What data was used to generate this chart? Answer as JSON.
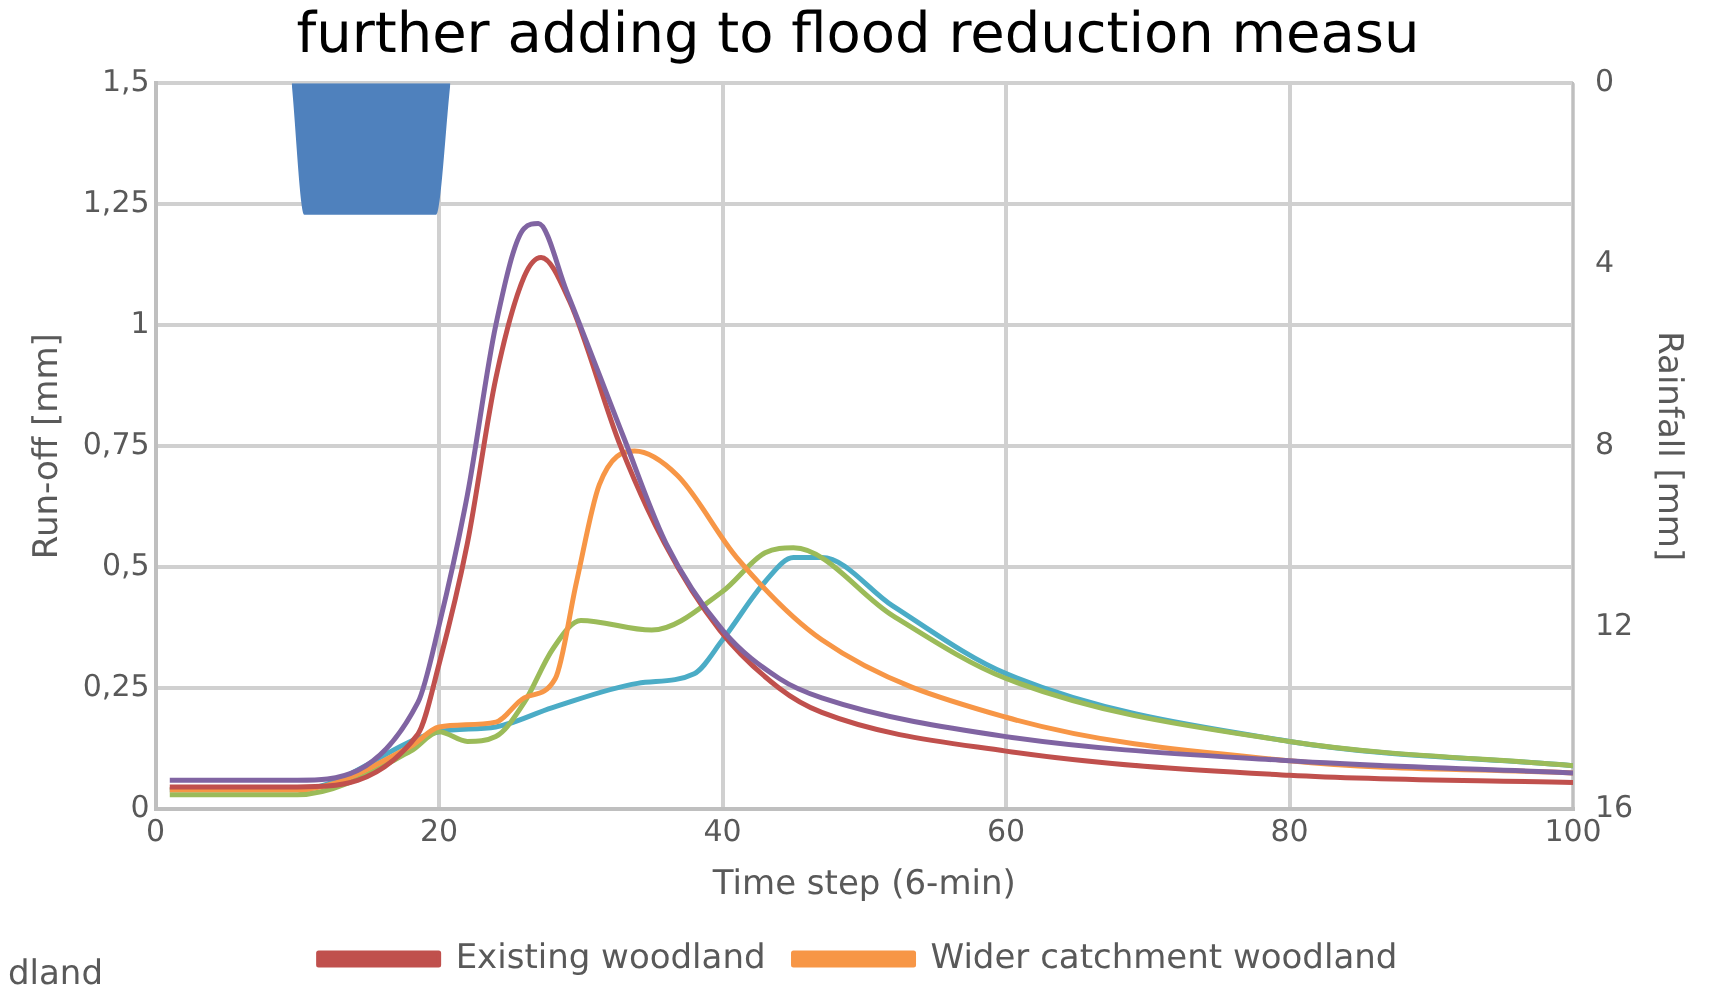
{
  "chart_data": {
    "type": "line",
    "title": "further adding to flood reduction measu",
    "xlabel": "Time step (6-min)",
    "ylabel": "Run-off [mm]",
    "y2label": "Rainfall [mm]",
    "xlim": [
      0,
      100
    ],
    "xticks": [
      0,
      20,
      40,
      60,
      80,
      100
    ],
    "ylim": [
      0,
      1.5
    ],
    "yticks": [
      0,
      {
        "value": 0.25,
        "label": "0,25"
      },
      {
        "value": 0.5,
        "label": "0,5"
      },
      {
        "value": 0.75,
        "label": "0,75"
      },
      1,
      {
        "value": 1.25,
        "label": "1,25"
      },
      {
        "value": 1.5,
        "label": "1,5"
      }
    ],
    "y2lim": [
      16,
      0
    ],
    "y2ticks": [
      0,
      4,
      8,
      12,
      16
    ],
    "grid": true,
    "legend": "bottom",
    "marker": "none",
    "line_style": "solid",
    "annotations": [
      "dland"
    ],
    "series": [
      {
        "type": "area",
        "axis": "y2",
        "color": "#4f81bd",
        "x": [
          9.6,
          10.5,
          19.8,
          20.8
        ],
        "values": [
          0,
          2.9,
          2.9,
          0
        ]
      },
      {
        "color": "#8064a2",
        "x": [
          1,
          10,
          18.5,
          20,
          22,
          24,
          26,
          27,
          29,
          33,
          36,
          40,
          44,
          47,
          60,
          80,
          100
        ],
        "values": [
          0.06,
          0.06,
          0.22,
          0.38,
          0.65,
          1.0,
          1.2,
          1.21,
          1.07,
          0.77,
          0.55,
          0.37,
          0.27,
          0.23,
          0.15,
          0.1,
          0.075
        ]
      },
      {
        "name": "Existing woodland",
        "color": "#c0504d",
        "x": [
          1,
          10,
          18.5,
          20,
          22,
          24,
          26,
          27.2,
          29.2,
          32.8,
          35.9,
          39.8,
          44,
          47,
          60,
          80,
          100
        ],
        "values": [
          0.046,
          0.046,
          0.155,
          0.3,
          0.55,
          0.89,
          1.1,
          1.14,
          1.05,
          0.75,
          0.55,
          0.37,
          0.25,
          0.2,
          0.12,
          0.07,
          0.055
        ]
      },
      {
        "name": "Wider catchment woodland",
        "color": "#f79646",
        "x": [
          1,
          10,
          18,
          20,
          24,
          26,
          28.2,
          29.7,
          31.3,
          33.8,
          36.8,
          41,
          47,
          60,
          80,
          100
        ],
        "values": [
          0.04,
          0.04,
          0.13,
          0.17,
          0.18,
          0.23,
          0.27,
          0.47,
          0.67,
          0.74,
          0.69,
          0.52,
          0.35,
          0.19,
          0.1,
          0.075
        ]
      },
      {
        "color": "#9bbb59",
        "x": [
          1,
          10,
          18,
          20,
          22,
          24,
          26,
          28,
          30,
          35,
          40,
          43,
          45,
          52,
          60,
          80,
          100
        ],
        "values": [
          0.03,
          0.03,
          0.12,
          0.16,
          0.14,
          0.15,
          0.22,
          0.33,
          0.39,
          0.37,
          0.45,
          0.53,
          0.54,
          0.4,
          0.27,
          0.14,
          0.09
        ]
      },
      {
        "color": "#4bacc6",
        "x": [
          1,
          10,
          20,
          24,
          28,
          34,
          38,
          40,
          43,
          45,
          47,
          52,
          60,
          80,
          100
        ],
        "values": [
          0.04,
          0.04,
          0.16,
          0.17,
          0.21,
          0.26,
          0.28,
          0.35,
          0.47,
          0.52,
          0.52,
          0.42,
          0.28,
          0.14,
          0.09
        ]
      }
    ]
  }
}
